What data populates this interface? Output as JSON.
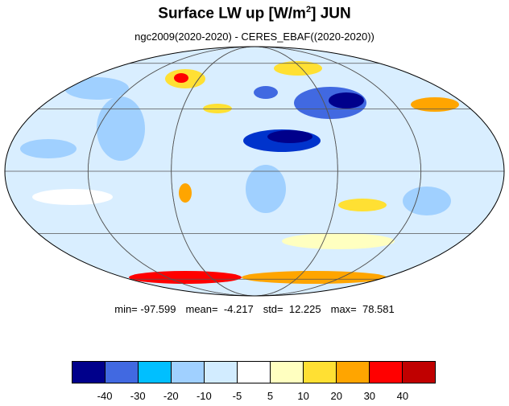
{
  "title": {
    "main": "Surface LW up [W/m",
    "sup": "2",
    "suffix": "]  JUN"
  },
  "subtitle": "ngc2009(2020-2020) - CERES_EBAF((2020-2020))",
  "stats": {
    "min": "min= -97.599",
    "mean": "mean=  -4.217",
    "std": "std=  12.225",
    "max": "max=  78.581"
  },
  "colorbar": {
    "colors": [
      "#00008b",
      "#4169e1",
      "#00bfff",
      "#a0d0ff",
      "#d2ecff",
      "#ffffff",
      "#ffffc0",
      "#ffe033",
      "#ffa500",
      "#ff0000",
      "#c00000"
    ],
    "ticks": [
      "-40",
      "-30",
      "-20",
      "-10",
      "-5",
      "5",
      "10",
      "20",
      "30",
      "40"
    ]
  },
  "map": {
    "projection": "mollweide",
    "ocean_color": "#d9eeff",
    "grid": true
  }
}
